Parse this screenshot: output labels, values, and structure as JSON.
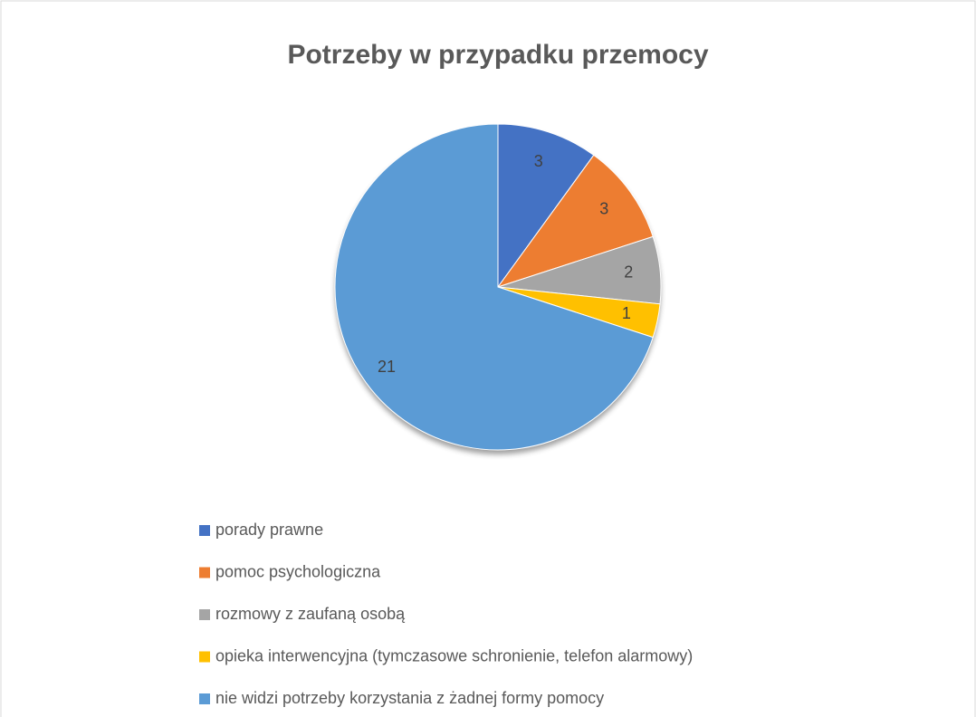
{
  "chart_data": {
    "type": "pie",
    "title": "Potrzeby w przypadku przemocy",
    "categories": [
      "porady prawne",
      "pomoc psychologiczna",
      "rozmowy z zaufaną osobą",
      "opieka interwencyjna (tymczasowe schronienie, telefon alarmowy)",
      "nie widzi potrzeby korzystania z żadnej formy pomocy"
    ],
    "values": [
      3,
      3,
      2,
      1,
      21
    ],
    "colors": [
      "#4472c4",
      "#ed7d31",
      "#a5a5a5",
      "#ffc000",
      "#5b9bd5"
    ],
    "legend": "bottom"
  }
}
